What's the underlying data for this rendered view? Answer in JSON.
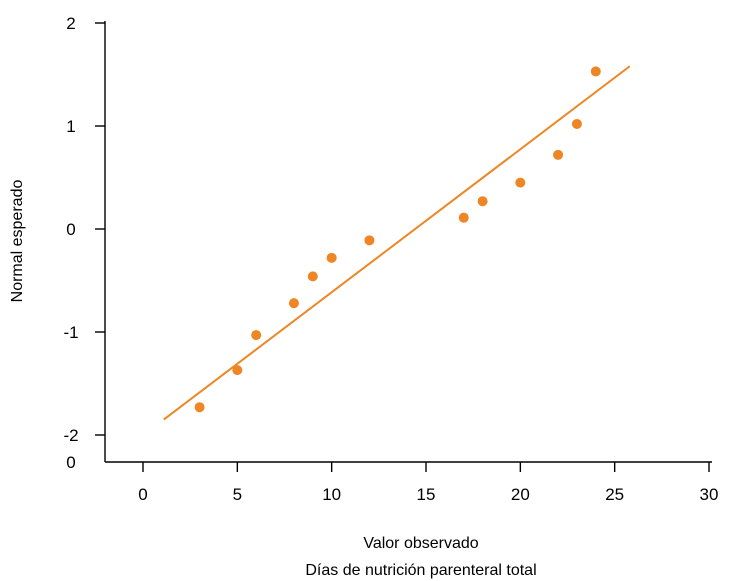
{
  "chart_data": {
    "type": "scatter",
    "title": "",
    "xlabel": "Valor observado",
    "xlabel_sub": "Días de nutrición parenteral total",
    "ylabel": "Normal esperado",
    "xlim": [
      -2,
      30
    ],
    "ylim": [
      -2.3,
      2
    ],
    "x_ticks": [
      0,
      5,
      10,
      15,
      20,
      25,
      30
    ],
    "y_ticks": [
      2,
      1,
      0,
      -1,
      -2
    ],
    "y_extra_label": "0",
    "grid": false,
    "legend": "none",
    "color": "#ee8625",
    "points": [
      {
        "x": 3,
        "y": -1.73
      },
      {
        "x": 5,
        "y": -1.37
      },
      {
        "x": 6,
        "y": -1.03
      },
      {
        "x": 8,
        "y": -0.72
      },
      {
        "x": 9,
        "y": -0.46
      },
      {
        "x": 10,
        "y": -0.28
      },
      {
        "x": 12,
        "y": -0.11
      },
      {
        "x": 17,
        "y": 0.11
      },
      {
        "x": 18,
        "y": 0.27
      },
      {
        "x": 20,
        "y": 0.45
      },
      {
        "x": 22,
        "y": 0.72
      },
      {
        "x": 23,
        "y": 1.02
      },
      {
        "x": 24,
        "y": 1.53
      }
    ],
    "fit_line": {
      "x": [
        1.1,
        25.8
      ],
      "y": [
        -1.85,
        1.58
      ]
    }
  }
}
